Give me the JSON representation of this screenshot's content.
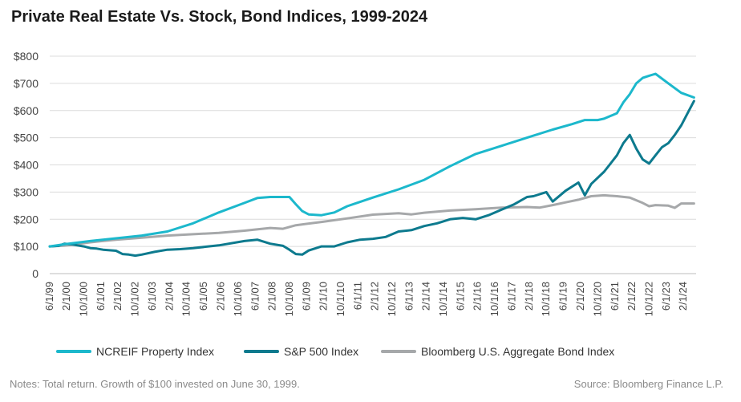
{
  "chart_data": {
    "type": "line",
    "title": "Private Real Estate Vs. Stock, Bond Indices, 1999-2024",
    "xlabel": "",
    "ylabel": "",
    "ylim": [
      0,
      800
    ],
    "yticks": [
      {
        "value": 0,
        "label": "0"
      },
      {
        "value": 100,
        "label": "$100"
      },
      {
        "value": 200,
        "label": "$200"
      },
      {
        "value": 300,
        "label": "$300"
      },
      {
        "value": 400,
        "label": "$400"
      },
      {
        "value": 500,
        "label": "$500"
      },
      {
        "value": 600,
        "label": "$600"
      },
      {
        "value": 700,
        "label": "$700"
      },
      {
        "value": 800,
        "label": "$800"
      }
    ],
    "xlim": [
      1999.42,
      2024.58
    ],
    "xticks": [
      {
        "value": 1999.42,
        "label": "6/1/99"
      },
      {
        "value": 2000.08,
        "label": "2/1/00"
      },
      {
        "value": 2000.75,
        "label": "10/1/00"
      },
      {
        "value": 2001.42,
        "label": "6/1/01"
      },
      {
        "value": 2002.08,
        "label": "2/1/02"
      },
      {
        "value": 2002.75,
        "label": "10/1/02"
      },
      {
        "value": 2003.42,
        "label": "6/1/03"
      },
      {
        "value": 2004.08,
        "label": "2/1/04"
      },
      {
        "value": 2004.75,
        "label": "10/1/04"
      },
      {
        "value": 2005.42,
        "label": "6/1/05"
      },
      {
        "value": 2006.08,
        "label": "2/1/06"
      },
      {
        "value": 2006.75,
        "label": "10/1/06"
      },
      {
        "value": 2007.42,
        "label": "6/1/07"
      },
      {
        "value": 2008.08,
        "label": "2/1/08"
      },
      {
        "value": 2008.75,
        "label": "10/1/08"
      },
      {
        "value": 2009.42,
        "label": "6/1/09"
      },
      {
        "value": 2010.08,
        "label": "2/1/10"
      },
      {
        "value": 2010.75,
        "label": "10/1/10"
      },
      {
        "value": 2011.42,
        "label": "6/1/11"
      },
      {
        "value": 2012.08,
        "label": "2/1/12"
      },
      {
        "value": 2012.75,
        "label": "10/1/12"
      },
      {
        "value": 2013.42,
        "label": "6/1/13"
      },
      {
        "value": 2014.08,
        "label": "2/1/14"
      },
      {
        "value": 2014.75,
        "label": "10/1/14"
      },
      {
        "value": 2015.42,
        "label": "6/1/15"
      },
      {
        "value": 2016.08,
        "label": "2/1/16"
      },
      {
        "value": 2016.75,
        "label": "10/1/16"
      },
      {
        "value": 2017.42,
        "label": "6/1/17"
      },
      {
        "value": 2018.08,
        "label": "2/1/18"
      },
      {
        "value": 2018.75,
        "label": "10/1/18"
      },
      {
        "value": 2019.42,
        "label": "6/1/19"
      },
      {
        "value": 2020.08,
        "label": "2/1/20"
      },
      {
        "value": 2020.75,
        "label": "10/1/20"
      },
      {
        "value": 2021.42,
        "label": "6/1/21"
      },
      {
        "value": 2022.08,
        "label": "2/1/22"
      },
      {
        "value": 2022.75,
        "label": "10/1/22"
      },
      {
        "value": 2023.42,
        "label": "6/1/23"
      },
      {
        "value": 2024.08,
        "label": "2/1/24"
      }
    ],
    "grid": "horizontal",
    "legend_position": "bottom",
    "series": [
      {
        "name": "NCREIF Property Index",
        "color": "#1cb8cc",
        "x": [
          1999.42,
          2000.0,
          2001.0,
          2002.0,
          2003.0,
          2004.0,
          2005.0,
          2006.0,
          2007.0,
          2007.5,
          2008.0,
          2008.5,
          2008.75,
          2009.0,
          2009.25,
          2009.5,
          2010.0,
          2010.5,
          2011.0,
          2012.0,
          2013.0,
          2014.0,
          2015.0,
          2016.0,
          2017.0,
          2018.0,
          2019.0,
          2019.75,
          2020.25,
          2020.75,
          2021.0,
          2021.5,
          2021.75,
          2022.0,
          2022.25,
          2022.5,
          2022.75,
          2023.0,
          2023.5,
          2024.0,
          2024.5
        ],
        "values": [
          100,
          108,
          120,
          130,
          140,
          155,
          185,
          225,
          260,
          278,
          282,
          282,
          282,
          255,
          230,
          218,
          215,
          225,
          248,
          280,
          310,
          345,
          395,
          440,
          470,
          500,
          530,
          550,
          565,
          565,
          570,
          590,
          630,
          660,
          700,
          720,
          728,
          735,
          700,
          665,
          648
        ]
      },
      {
        "name": "S&P 500 Index",
        "color": "#0d7a8e",
        "x": [
          1999.42,
          1999.75,
          2000.0,
          2000.25,
          2000.5,
          2000.75,
          2001.0,
          2001.25,
          2001.5,
          2002.0,
          2002.25,
          2002.5,
          2002.75,
          2003.0,
          2003.5,
          2004.0,
          2004.5,
          2005.0,
          2006.0,
          2007.0,
          2007.5,
          2008.0,
          2008.5,
          2008.75,
          2009.0,
          2009.25,
          2009.5,
          2010.0,
          2010.5,
          2011.0,
          2011.5,
          2012.0,
          2012.5,
          2013.0,
          2013.5,
          2014.0,
          2014.5,
          2015.0,
          2015.5,
          2016.0,
          2016.5,
          2017.0,
          2017.5,
          2018.0,
          2018.25,
          2018.75,
          2019.0,
          2019.5,
          2020.0,
          2020.25,
          2020.5,
          2021.0,
          2021.5,
          2021.75,
          2022.0,
          2022.25,
          2022.5,
          2022.75,
          2023.0,
          2023.25,
          2023.5,
          2023.75,
          2024.0,
          2024.25,
          2024.5
        ],
        "values": [
          100,
          102,
          110,
          108,
          104,
          100,
          94,
          92,
          88,
          84,
          72,
          70,
          66,
          70,
          80,
          88,
          90,
          94,
          104,
          120,
          125,
          110,
          102,
          88,
          72,
          70,
          85,
          100,
          100,
          115,
          125,
          128,
          135,
          155,
          160,
          175,
          185,
          200,
          205,
          200,
          215,
          235,
          255,
          282,
          285,
          300,
          265,
          305,
          335,
          288,
          330,
          375,
          435,
          480,
          510,
          460,
          420,
          405,
          435,
          465,
          480,
          510,
          545,
          590,
          635
        ]
      },
      {
        "name": "Bloomberg U.S. Aggregate Bond Index",
        "color": "#a6a8aa",
        "x": [
          1999.42,
          2000.0,
          2001.0,
          2002.0,
          2003.0,
          2004.0,
          2005.0,
          2006.0,
          2007.0,
          2008.0,
          2008.5,
          2009.0,
          2010.0,
          2011.0,
          2012.0,
          2013.0,
          2013.5,
          2014.0,
          2015.0,
          2016.0,
          2017.0,
          2018.0,
          2018.5,
          2019.0,
          2019.5,
          2020.0,
          2020.5,
          2021.0,
          2021.5,
          2022.0,
          2022.5,
          2022.75,
          2023.0,
          2023.5,
          2023.75,
          2024.0,
          2024.5
        ],
        "values": [
          100,
          103,
          115,
          125,
          132,
          140,
          145,
          150,
          158,
          168,
          165,
          178,
          190,
          203,
          217,
          222,
          218,
          224,
          232,
          237,
          243,
          245,
          243,
          252,
          262,
          272,
          285,
          288,
          285,
          280,
          260,
          248,
          252,
          250,
          242,
          258,
          258
        ]
      }
    ]
  },
  "notes": {
    "left": "Notes: Total return. Growth of $100 invested on June 30, 1999.",
    "right": "Source: Bloomberg Finance L.P."
  }
}
